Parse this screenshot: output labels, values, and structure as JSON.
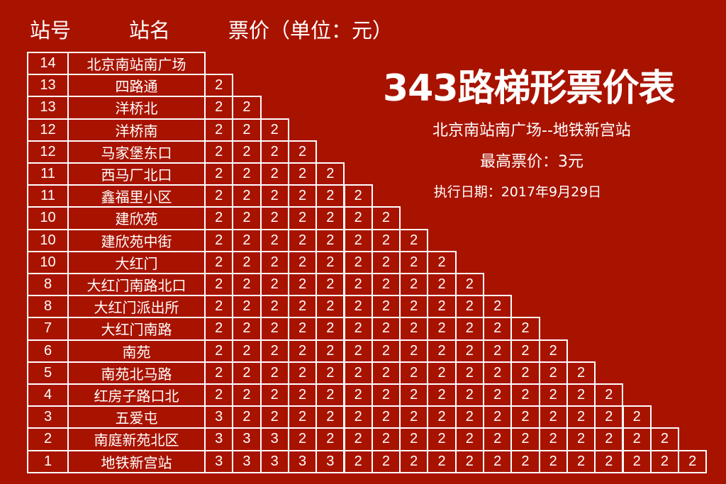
{
  "headers": {
    "station_no": "站号",
    "station_name": "站名",
    "fare": "票价（单位：元）"
  },
  "title": "343路梯形票价表",
  "route": "北京南站南广场--地铁新宫站",
  "max_fare": "最高票价：3元",
  "effective_date": "执行日期：2017年9月29日",
  "colors": {
    "background": "#a81300",
    "foreground": "#ffffff"
  },
  "rows": [
    {
      "no": "14",
      "name": "北京南站南广场",
      "fares": []
    },
    {
      "no": "13",
      "name": "四路通",
      "fares": [
        "2"
      ]
    },
    {
      "no": "13",
      "name": "洋桥北",
      "fares": [
        "2",
        "2"
      ]
    },
    {
      "no": "12",
      "name": "洋桥南",
      "fares": [
        "2",
        "2",
        "2"
      ]
    },
    {
      "no": "12",
      "name": "马家堡东口",
      "fares": [
        "2",
        "2",
        "2",
        "2"
      ]
    },
    {
      "no": "11",
      "name": "西马厂北口",
      "fares": [
        "2",
        "2",
        "2",
        "2",
        "2"
      ]
    },
    {
      "no": "11",
      "name": "鑫福里小区",
      "fares": [
        "2",
        "2",
        "2",
        "2",
        "2",
        "2"
      ]
    },
    {
      "no": "10",
      "name": "建欣苑",
      "fares": [
        "2",
        "2",
        "2",
        "2",
        "2",
        "2",
        "2"
      ]
    },
    {
      "no": "10",
      "name": "建欣苑中街",
      "fares": [
        "2",
        "2",
        "2",
        "2",
        "2",
        "2",
        "2",
        "2"
      ]
    },
    {
      "no": "10",
      "name": "大红门",
      "fares": [
        "2",
        "2",
        "2",
        "2",
        "2",
        "2",
        "2",
        "2",
        "2"
      ]
    },
    {
      "no": "8",
      "name": "大红门南路北口",
      "fares": [
        "2",
        "2",
        "2",
        "2",
        "2",
        "2",
        "2",
        "2",
        "2",
        "2"
      ]
    },
    {
      "no": "8",
      "name": "大红门派出所",
      "fares": [
        "2",
        "2",
        "2",
        "2",
        "2",
        "2",
        "2",
        "2",
        "2",
        "2",
        "2"
      ]
    },
    {
      "no": "7",
      "name": "大红门南路",
      "fares": [
        "2",
        "2",
        "2",
        "2",
        "2",
        "2",
        "2",
        "2",
        "2",
        "2",
        "2",
        "2"
      ]
    },
    {
      "no": "6",
      "name": "南苑",
      "fares": [
        "2",
        "2",
        "2",
        "2",
        "2",
        "2",
        "2",
        "2",
        "2",
        "2",
        "2",
        "2",
        "2"
      ]
    },
    {
      "no": "5",
      "name": "南苑北马路",
      "fares": [
        "2",
        "2",
        "2",
        "2",
        "2",
        "2",
        "2",
        "2",
        "2",
        "2",
        "2",
        "2",
        "2",
        "2"
      ]
    },
    {
      "no": "4",
      "name": "红房子路口北",
      "fares": [
        "2",
        "2",
        "2",
        "2",
        "2",
        "2",
        "2",
        "2",
        "2",
        "2",
        "2",
        "2",
        "2",
        "2",
        "2"
      ]
    },
    {
      "no": "3",
      "name": "五爱屯",
      "fares": [
        "3",
        "2",
        "2",
        "2",
        "2",
        "2",
        "2",
        "2",
        "2",
        "2",
        "2",
        "2",
        "2",
        "2",
        "2",
        "2"
      ]
    },
    {
      "no": "2",
      "name": "南庭新苑北区",
      "fares": [
        "3",
        "3",
        "3",
        "2",
        "2",
        "2",
        "2",
        "2",
        "2",
        "2",
        "2",
        "2",
        "2",
        "2",
        "2",
        "2",
        "2"
      ]
    },
    {
      "no": "1",
      "name": "地铁新宫站",
      "fares": [
        "3",
        "3",
        "3",
        "3",
        "3",
        "2",
        "2",
        "2",
        "2",
        "2",
        "2",
        "2",
        "2",
        "2",
        "2",
        "2",
        "2",
        "2"
      ]
    }
  ]
}
